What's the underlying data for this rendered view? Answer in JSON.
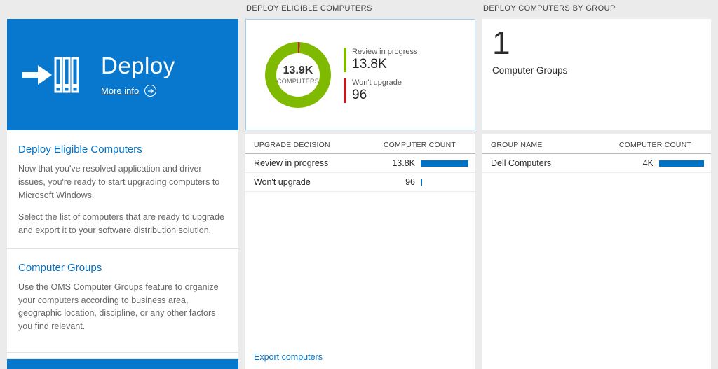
{
  "colors": {
    "tile_blue": "#0878ce",
    "accent_blue": "#0072c6",
    "bar_blue": "#0072c6",
    "green": "#7fba00",
    "red": "#b81f25",
    "page_bg": "#ebebeb"
  },
  "left": {
    "tile": {
      "title": "Deploy",
      "more_info_label": "More info"
    },
    "sections": [
      {
        "heading": "Deploy Eligible Computers",
        "paragraphs": [
          "Now that you've resolved application and driver issues, you're ready to start upgrading computers to Microsoft Windows.",
          "Select the list of computers that are ready to upgrade and export it to your software distribution solution."
        ]
      },
      {
        "heading": "Computer Groups",
        "paragraphs": [
          "Use the OMS Computer Groups feature to organize your computers according to business area, geographic location, discipline, or any other factors you find relevant."
        ]
      }
    ]
  },
  "middle": {
    "header": "DEPLOY ELIGIBLE COMPUTERS",
    "donut": {
      "center_value": "13.9K",
      "center_label": "COMPUTERS",
      "segments": [
        {
          "color": "#b81f25",
          "pct": 0.9
        },
        {
          "color": "#7fba00",
          "pct": 99.1
        }
      ],
      "legend": [
        {
          "label": "Review in progress",
          "value": "13.8K",
          "color": "#7fba00"
        },
        {
          "label": "Won't upgrade",
          "value": "96",
          "color": "#b81f25"
        }
      ]
    },
    "table": {
      "columns": [
        "UPGRADE DECISION",
        "COMPUTER COUNT"
      ],
      "rows": [
        {
          "label": "Review in progress",
          "value": "13.8K",
          "bar_pct": 100
        },
        {
          "label": "Won't upgrade",
          "value": "96",
          "bar_pct": 3
        }
      ]
    },
    "export_label": "Export computers"
  },
  "right": {
    "header": "DEPLOY COMPUTERS BY GROUP",
    "tile": {
      "count": "1",
      "label": "Computer Groups"
    },
    "table": {
      "columns": [
        "GROUP NAME",
        "COMPUTER COUNT"
      ],
      "rows": [
        {
          "label": "Dell Computers",
          "value": "4K",
          "bar_pct": 100
        }
      ]
    }
  },
  "chart_data": {
    "type": "pie",
    "title": "Deploy Eligible Computers",
    "center_label": "13.9K COMPUTERS",
    "series": [
      {
        "name": "Review in progress",
        "value": 13800,
        "display": "13.8K",
        "color": "#7fba00"
      },
      {
        "name": "Won't upgrade",
        "value": 96,
        "display": "96",
        "color": "#b81f25"
      }
    ],
    "legend_position": "right"
  }
}
